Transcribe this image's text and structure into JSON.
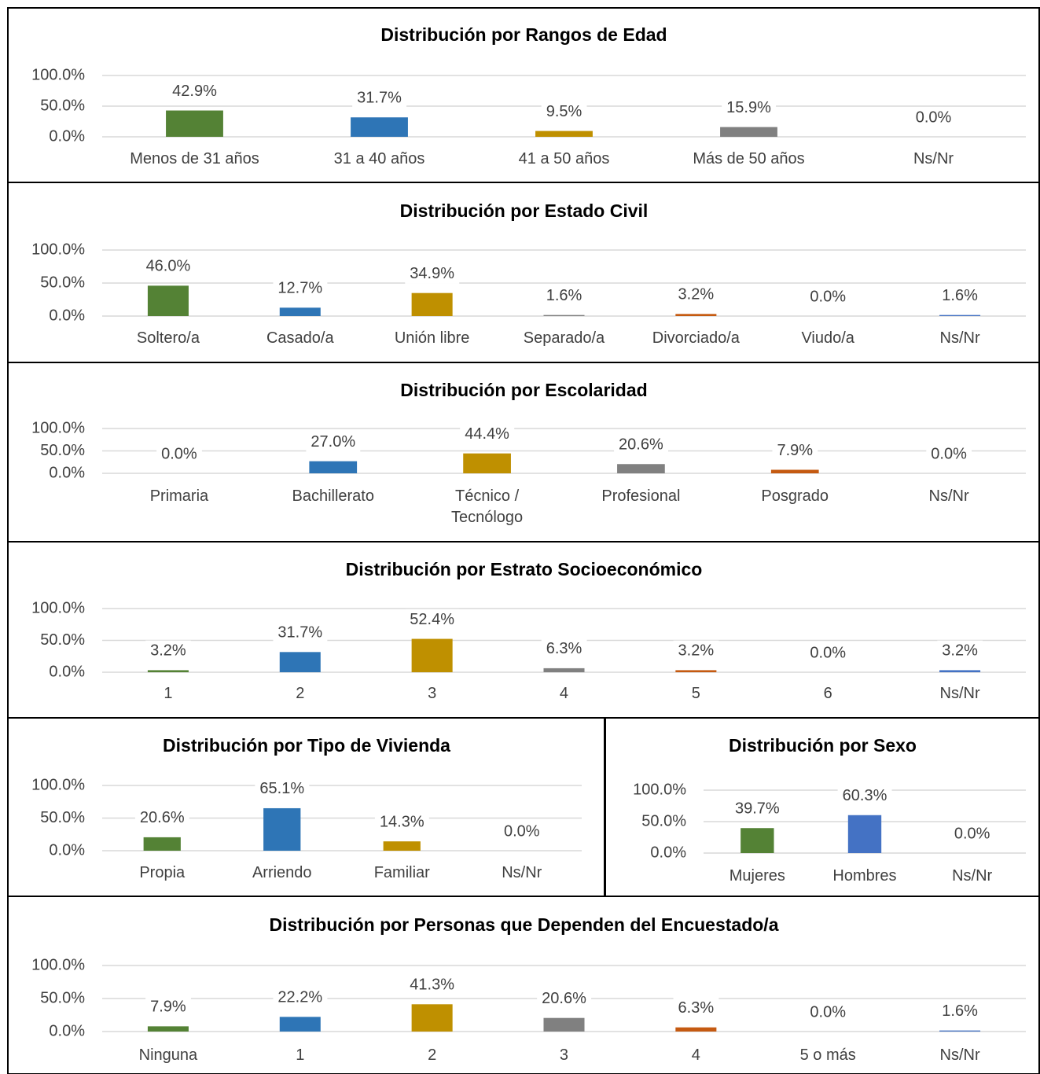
{
  "chart_data": [
    {
      "type": "bar",
      "title": "Distribución  por Rangos de Edad",
      "categories": [
        "Menos de 31 años",
        "31 a 40 años",
        "41 a 50 años",
        "Más de 50 años",
        "Ns/Nr"
      ],
      "values": [
        42.9,
        31.7,
        9.5,
        15.9,
        0.0
      ],
      "value_labels": [
        "42.9%",
        "31.7%",
        "9.5%",
        "15.9%",
        "0.0%"
      ],
      "colors": [
        "#548235",
        "#2e75b6",
        "#bf9000",
        "#808080",
        "#c55a11"
      ],
      "ylim": [
        0,
        100
      ],
      "yticks": [
        {
          "value": 0,
          "label": "0.0%"
        },
        {
          "value": 50,
          "label": "50.0%"
        },
        {
          "value": 100,
          "label": "100.0%"
        }
      ],
      "grid": true
    },
    {
      "type": "bar",
      "title": "Distribución  por Estado Civil",
      "categories": [
        "Soltero/a",
        "Casado/a",
        "Unión libre",
        "Separado/a",
        "Divorciado/a",
        "Viudo/a",
        "Ns/Nr"
      ],
      "values": [
        46.0,
        12.7,
        34.9,
        1.6,
        3.2,
        0.0,
        1.6
      ],
      "value_labels": [
        "46.0%",
        "12.7%",
        "34.9%",
        "1.6%",
        "3.2%",
        "0.0%",
        "1.6%"
      ],
      "colors": [
        "#548235",
        "#2e75b6",
        "#bf9000",
        "#808080",
        "#c55a11",
        "#264478",
        "#4472c4"
      ],
      "ylim": [
        0,
        100
      ],
      "yticks": [
        {
          "value": 0,
          "label": "0.0%"
        },
        {
          "value": 50,
          "label": "50.0%"
        },
        {
          "value": 100,
          "label": "100.0%"
        }
      ],
      "grid": true
    },
    {
      "type": "bar",
      "title": "Distribución  por Escolaridad",
      "categories": [
        "Primaria",
        "Bachillerato",
        "Técnico / Tecnólogo",
        "Profesional",
        "Posgrado",
        "Ns/Nr"
      ],
      "values": [
        0.0,
        27.0,
        44.4,
        20.6,
        7.9,
        0.0
      ],
      "value_labels": [
        "0.0%",
        "27.0%",
        "44.4%",
        "20.6%",
        "7.9%",
        "0.0%"
      ],
      "colors": [
        "#548235",
        "#2e75b6",
        "#bf9000",
        "#808080",
        "#c55a11",
        "#4472c4"
      ],
      "ylim": [
        0,
        100
      ],
      "yticks": [
        {
          "value": 0,
          "label": "0.0%"
        },
        {
          "value": 50,
          "label": "50.0%"
        },
        {
          "value": 100,
          "label": "100.0%"
        }
      ],
      "grid": true
    },
    {
      "type": "bar",
      "title": "Distribución  por Estrato Socioeconómico",
      "categories": [
        "1",
        "2",
        "3",
        "4",
        "5",
        "6",
        "Ns/Nr"
      ],
      "values": [
        3.2,
        31.7,
        52.4,
        6.3,
        3.2,
        0.0,
        3.2
      ],
      "value_labels": [
        "3.2%",
        "31.7%",
        "52.4%",
        "6.3%",
        "3.2%",
        "0.0%",
        "3.2%"
      ],
      "colors": [
        "#548235",
        "#2e75b6",
        "#bf9000",
        "#808080",
        "#c55a11",
        "#264478",
        "#4472c4"
      ],
      "ylim": [
        0,
        100
      ],
      "yticks": [
        {
          "value": 0,
          "label": "0.0%"
        },
        {
          "value": 50,
          "label": "50.0%"
        },
        {
          "value": 100,
          "label": "100.0%"
        }
      ],
      "grid": true
    },
    {
      "type": "bar",
      "title": "Distribución  por Tipo de Vivienda",
      "categories": [
        "Propia",
        "Arriendo",
        "Familiar",
        "Ns/Nr"
      ],
      "values": [
        20.6,
        65.1,
        14.3,
        0.0
      ],
      "value_labels": [
        "20.6%",
        "65.1%",
        "14.3%",
        "0.0%"
      ],
      "colors": [
        "#548235",
        "#2e75b6",
        "#bf9000",
        "#808080"
      ],
      "ylim": [
        0,
        100
      ],
      "yticks": [
        {
          "value": 0,
          "label": "0.0%"
        },
        {
          "value": 50,
          "label": "50.0%"
        },
        {
          "value": 100,
          "label": "100.0%"
        }
      ],
      "grid": true
    },
    {
      "type": "bar",
      "title": "Distribución  por Sexo",
      "categories": [
        "Mujeres",
        "Hombres",
        "Ns/Nr"
      ],
      "values": [
        39.7,
        60.3,
        0.0
      ],
      "value_labels": [
        "39.7%",
        "60.3%",
        "0.0%"
      ],
      "colors": [
        "#548235",
        "#4472c4",
        "#808080"
      ],
      "ylim": [
        0,
        100
      ],
      "yticks": [
        {
          "value": 0,
          "label": "0.0%"
        },
        {
          "value": 50,
          "label": "50.0%"
        },
        {
          "value": 100,
          "label": "100.0%"
        }
      ],
      "grid": true
    },
    {
      "type": "bar",
      "title": "Distribución por Personas que Dependen del Encuestado/a",
      "categories": [
        "Ninguna",
        "1",
        "2",
        "3",
        "4",
        "5 o más",
        "Ns/Nr"
      ],
      "values": [
        7.9,
        22.2,
        41.3,
        20.6,
        6.3,
        0.0,
        1.6
      ],
      "value_labels": [
        "7.9%",
        "22.2%",
        "41.3%",
        "20.6%",
        "6.3%",
        "0.0%",
        "1.6%"
      ],
      "colors": [
        "#548235",
        "#2e75b6",
        "#bf9000",
        "#808080",
        "#c55a11",
        "#264478",
        "#4472c4"
      ],
      "ylim": [
        0,
        100
      ],
      "yticks": [
        {
          "value": 0,
          "label": "0.0%"
        },
        {
          "value": 50,
          "label": "50.0%"
        },
        {
          "value": 100,
          "label": "100.0%"
        }
      ],
      "grid": true
    }
  ]
}
